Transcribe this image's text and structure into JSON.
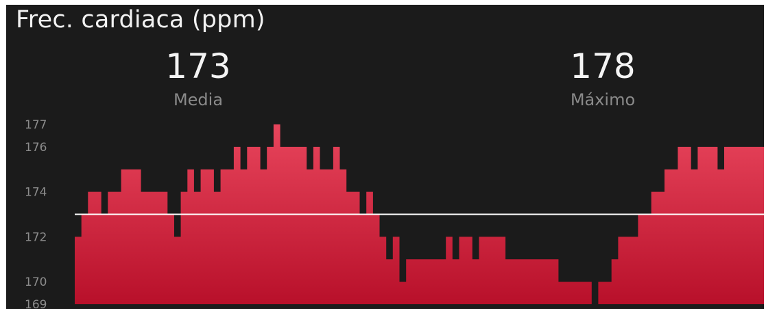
{
  "title": "Frec. cardiaca (ppm)",
  "stats": [
    {
      "value": "173",
      "label": "Media"
    },
    {
      "value": "178",
      "label": "Máximo"
    }
  ],
  "colors": {
    "background": "#1b1b1b",
    "area_top": "#e8455c",
    "area_bottom": "#b8102a",
    "average_line": "#ffffff"
  },
  "chart_data": {
    "type": "area",
    "title": "Frec. cardiaca (ppm)",
    "xlabel": "",
    "ylabel": "",
    "ylim": [
      169,
      177
    ],
    "y_ticks": [
      169,
      170,
      172,
      174,
      176,
      177
    ],
    "grid": false,
    "average_line": 173,
    "series": [
      {
        "values": [
          172,
          173,
          174,
          174,
          173,
          174,
          174,
          175,
          175,
          175,
          174,
          174,
          174,
          174,
          173,
          172,
          174,
          175,
          174,
          175,
          175,
          174,
          175,
          175,
          176,
          175,
          176,
          176,
          175,
          176,
          177,
          176,
          176,
          176,
          176,
          175,
          176,
          175,
          175,
          176,
          175,
          174,
          174,
          173,
          174,
          173,
          172,
          171,
          172,
          170,
          171,
          171,
          171,
          171,
          171,
          171,
          172,
          171,
          172,
          172,
          171,
          172,
          172,
          172,
          172,
          171,
          171,
          171,
          171,
          171,
          171,
          171,
          171,
          170,
          170,
          170,
          170,
          170,
          169,
          170,
          170,
          171,
          172,
          172,
          172,
          173,
          173,
          174,
          174,
          175,
          175,
          176,
          176,
          175,
          176,
          176,
          176,
          175,
          176,
          176,
          176,
          176,
          176,
          176
        ]
      }
    ]
  }
}
